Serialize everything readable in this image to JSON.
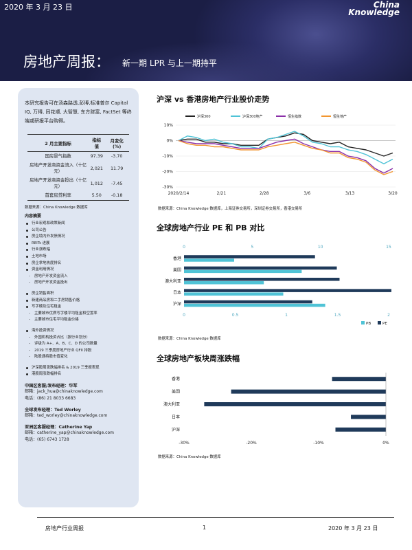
{
  "header": {
    "date": "2020 年 3 月 23 日",
    "brand_line1": "China",
    "brand_line2": "Knowledge",
    "title": "房地产周报：",
    "subtitle": "新一期 LPR 与上一期持平"
  },
  "sidebar": {
    "intro": "本研究报告可在汤森路透,彭博,标准普尔 Capital IQ, 万得, 同花顺, 大智慧, 东方财富, FactSet 等终端或研报平台购得。",
    "table": {
      "headers": [
        "2 月主要指标",
        "指标值",
        "月变化 (%)"
      ],
      "rows": [
        [
          "国房景气指数",
          "97.39",
          "-3.70"
        ],
        [
          "房地产开发商资金流入（十亿元）",
          "2,021",
          "11.79"
        ],
        [
          "房地产开发商资金投出（十亿元）",
          "1,012",
          "-7.45"
        ],
        [
          "首套房贷利率",
          "5.50",
          "-0.18"
        ]
      ]
    },
    "source": "数据来源：China Knowledge 数据库",
    "toc_title": "内容摘要",
    "toc": [
      {
        "t": "行业宏观和政策新闻",
        "k": "b"
      },
      {
        "t": "公司公告",
        "k": "b"
      },
      {
        "t": "房企境内外发债情况",
        "k": "b"
      },
      {
        "t": "REITs 进展",
        "k": "b"
      },
      {
        "t": "行业涨跌幅",
        "k": "b"
      },
      {
        "t": "土地市场",
        "k": "b"
      },
      {
        "t": "房企拿地热度排名",
        "k": "b"
      },
      {
        "t": "资金利用情况",
        "k": "b"
      },
      {
        "t": "房地产开发资金流入",
        "k": "s"
      },
      {
        "t": "房地产开发资金投出",
        "k": "s"
      },
      {
        "t": "房企销售面积",
        "k": "b gap"
      },
      {
        "t": "新建商品房和二手房销售价格",
        "k": "b"
      },
      {
        "t": "写字楼及住宅租金",
        "k": "b"
      },
      {
        "t": "主要城市优质写字楼平均租金和空置率",
        "k": "s"
      },
      {
        "t": "主要城市住宅平均租金价格",
        "k": "s"
      },
      {
        "t": "海外投资情况",
        "k": "b gap"
      },
      {
        "t": "外国机构投资占比（按行业划分）",
        "k": "s"
      },
      {
        "t": "评级为 A+、A、B、C、D 的公司数量",
        "k": "s"
      },
      {
        "t": "2019 三季度房地产行业 QFII 持股",
        "k": "s"
      },
      {
        "t": "陆股通持股市值变化",
        "k": "s"
      },
      {
        "t": "沪深股周涨跌幅排名 & 2019 三季报表现",
        "k": "b gap"
      },
      {
        "t": "港股周涨跌幅排名",
        "k": "b"
      }
    ],
    "contacts": [
      {
        "head": "中国区客服/发布经理：华军",
        "lines": [
          "邮箱：jack_hua@chinaknowledge.com",
          "电话：(86) 21 8033 6683"
        ]
      },
      {
        "head": "全球发布经理：Ted Worley",
        "lines": [
          "邮箱：ted_worley@chinaknowledge.com"
        ]
      },
      {
        "head": "亚洲区客服经理：Catherine Yap",
        "lines": [
          "邮箱：catherine_yap@chinaknowledge.com",
          "电话：(65) 6743 1728"
        ]
      }
    ]
  },
  "sections": {
    "s1_title": "沪深 vs 香港房地产行业股价走势",
    "s1_source": "数据来源：China Knowledge 数据库，上海证券交易所，深圳证券交易所，香港交易所",
    "s2_title": "全球房地产行业 PE 和 PB 对比",
    "s2_source": "数据来源：China Knowledge 数据库",
    "s3_title": "全球房地产板块周涨跌幅",
    "s3_source": "数据来源：China Knowledge 数据库"
  },
  "chart_data": [
    {
      "type": "line",
      "title": "沪深 vs 香港房地产行业股价走势",
      "x_ticks": [
        "2020/2/14",
        "2/21",
        "2/28",
        "3/6",
        "3/13",
        "3/20"
      ],
      "y_ticks": [
        "10%",
        "0%",
        "-10%",
        "-20%",
        "-30%"
      ],
      "ylim": [
        -30,
        10
      ],
      "legend_position": "top",
      "series": [
        {
          "name": "沪深300",
          "color": "#222222",
          "values": [
            0,
            1,
            1,
            -1,
            -1,
            -2,
            -2,
            -3,
            -3,
            -3,
            1,
            2,
            3,
            5,
            4,
            0,
            -1,
            -2,
            -1,
            -4,
            -5,
            -6,
            -8,
            -10,
            -8
          ]
        },
        {
          "name": "沪深300地产",
          "color": "#4fc3d6",
          "values": [
            0,
            3,
            2,
            0,
            1,
            -1,
            -2,
            -4,
            -4,
            -5,
            1,
            2,
            4,
            6,
            3,
            -1,
            -2,
            -4,
            -4,
            -6,
            -7,
            -9,
            -12,
            -15,
            -12
          ]
        },
        {
          "name": "恒生指数",
          "color": "#8b2fa8",
          "values": [
            0,
            -1,
            -2,
            -2,
            -2,
            -3,
            -4,
            -5,
            -5,
            -5,
            -3,
            -1,
            0,
            1,
            -2,
            -4,
            -6,
            -7,
            -7,
            -10,
            -11,
            -13,
            -18,
            -21,
            -18
          ]
        },
        {
          "name": "恒生地产",
          "color": "#f29630",
          "values": [
            0,
            -2,
            -3,
            -3,
            -4,
            -4,
            -5,
            -6,
            -6,
            -6,
            -4,
            -3,
            -2,
            -1,
            -3,
            -5,
            -6,
            -8,
            -8,
            -11,
            -12,
            -14,
            -19,
            -22,
            -20
          ]
        }
      ]
    },
    {
      "type": "bar",
      "title": "全球房地产行业 PE 和 PB 对比",
      "categories": [
        "香港",
        "美国",
        "澳大利亚",
        "日本",
        "沪深"
      ],
      "pe_axis_ticks": [
        "0",
        "5",
        "10",
        "15"
      ],
      "pb_axis_ticks": [
        "0",
        "0.5",
        "1",
        "1.5",
        "2"
      ],
      "series": [
        {
          "name": "PE",
          "color": "#1f3a5a",
          "axis": "top",
          "values": [
            9.6,
            11.2,
            11.4,
            15.2,
            9.4
          ]
        },
        {
          "name": "PB",
          "color": "#4fc3d6",
          "axis": "bottom",
          "values": [
            0.49,
            1.15,
            0.78,
            0.97,
            1.38
          ]
        }
      ]
    },
    {
      "type": "bar",
      "title": "全球房地产板块周涨跌幅",
      "categories": [
        "香港",
        "美国",
        "澳大利亚",
        "日本",
        "沪深"
      ],
      "x_ticks": [
        "-30%",
        "-20%",
        "-10%",
        "0%"
      ],
      "xlim": [
        -30,
        0
      ],
      "series": [
        {
          "name": "",
          "color": "#1f3a5a",
          "values": [
            -8.0,
            -23.0,
            -27.0,
            -5.2,
            -7.5
          ]
        }
      ]
    }
  ],
  "footer": {
    "left": "房地产行业周报",
    "page": "1",
    "right": "2020 年 3 月 23 日"
  }
}
